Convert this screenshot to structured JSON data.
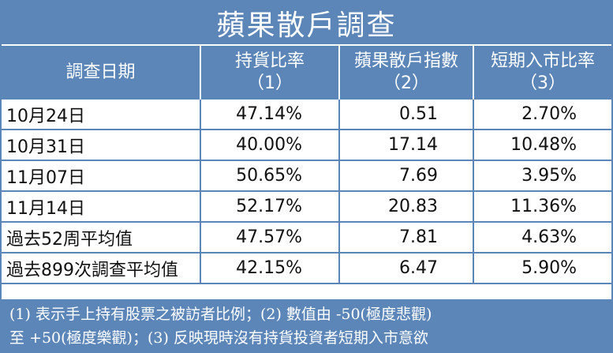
{
  "title": "蘋果散戶調查",
  "headers": [
    {
      "line1": "調查日期",
      "line2": ""
    },
    {
      "line1": "持貨比率",
      "line2": "（1）"
    },
    {
      "line1": "蘋果散戶指數",
      "line2": "（2）"
    },
    {
      "line1": "短期入市比率",
      "line2": "（3）"
    }
  ],
  "rows": [
    {
      "date": "10月24日",
      "holding": "47.14%",
      "index": "0.51",
      "entry": "2.70%"
    },
    {
      "date": "10月31日",
      "holding": "40.00%",
      "index": "17.14",
      "entry": "10.48%"
    },
    {
      "date": "11月07日",
      "holding": "50.65%",
      "index": "7.69",
      "entry": "3.95%"
    },
    {
      "date": "11月14日",
      "holding": "52.17%",
      "index": "20.83",
      "entry": "11.36%"
    },
    {
      "date": "過去52周平均值",
      "holding": "47.57%",
      "index": "7.81",
      "entry": "4.63%"
    },
    {
      "date": "過去899次調查平均值",
      "holding": "42.15%",
      "index": "6.47",
      "entry": "5.90%"
    }
  ],
  "footnote": {
    "line1": "(1) 表示手上持有股票之被訪者比例；(2) 數值由 -50(極度悲觀)",
    "line2": "至 +50(極度樂觀)；(3) 反映現時沒有持貨投資者短期入市意欲"
  }
}
